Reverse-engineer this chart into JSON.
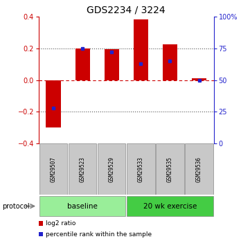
{
  "title": "GDS2234 / 3224",
  "samples": [
    "GSM29507",
    "GSM29523",
    "GSM29529",
    "GSM29533",
    "GSM29535",
    "GSM29536"
  ],
  "log2_ratio": [
    -0.3,
    0.2,
    0.195,
    0.385,
    0.225,
    0.01
  ],
  "pct_rank_vals": [
    28,
    75,
    72,
    63,
    65,
    50
  ],
  "ylim_left": [
    -0.4,
    0.4
  ],
  "ylim_right": [
    0,
    100
  ],
  "yticks_left": [
    -0.4,
    -0.2,
    0.0,
    0.2,
    0.4
  ],
  "yticks_right": [
    0,
    25,
    50,
    75,
    100
  ],
  "ytick_labels_right": [
    "0",
    "25",
    "50",
    "75",
    "100%"
  ],
  "bar_color": "#cc0000",
  "dot_color": "#2222cc",
  "left_tick_color": "#cc0000",
  "right_tick_color": "#2222cc",
  "zero_line_color": "#cc0000",
  "dotted_color": "#555555",
  "groups": [
    {
      "label": "baseline",
      "start": 0,
      "end": 3,
      "color": "#99ee99"
    },
    {
      "label": "20 wk exercise",
      "start": 3,
      "end": 6,
      "color": "#44cc44"
    }
  ],
  "protocol_label": "protocol",
  "legend_items": [
    {
      "color": "#cc0000",
      "label": "log2 ratio"
    },
    {
      "color": "#2222cc",
      "label": "percentile rank within the sample"
    }
  ],
  "bar_width": 0.5,
  "sample_box_color": "#c8c8c8",
  "sample_box_edge": "#888888"
}
